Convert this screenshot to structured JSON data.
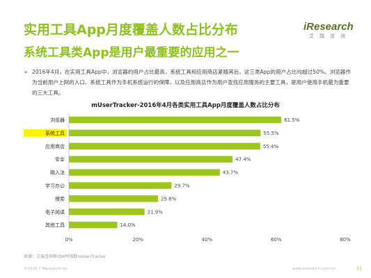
{
  "header": {
    "title": "实用工具App月度覆盖人数占比分布",
    "subtitle": "系统工具类App是用户最重要的应用之一"
  },
  "logo": {
    "text": "iResearch",
    "sub": "艾瑞咨询"
  },
  "bullet": {
    "marker": "➢",
    "text": "2016年4月，在实用工具App中，浏览器的用户占比最高，系统工具和应用商店紧随其后，这三类App的用户占比均超过50%。浏览器作为当前用户上网的入口、系统工具作为手机系统运行的保障，以及应用商店作为用户查找应用服务的主要工具，是用户使用手机最为重要的三大工具。"
  },
  "chart_data": {
    "type": "bar",
    "orientation": "horizontal",
    "title": "mUserTracker-2016年4月各类实用工具App月度覆盖人数占比分布",
    "categories": [
      "浏览器",
      "系统工具",
      "应用商店",
      "安全",
      "输入法",
      "学习办公",
      "搜索",
      "电子阅读",
      "其他工具"
    ],
    "values": [
      61.5,
      55.5,
      55.4,
      47.4,
      43.7,
      29.7,
      25.8,
      21.9,
      14.0
    ],
    "value_labels": [
      "61.5%",
      "55.5%",
      "55.4%",
      "47.4%",
      "43.7%",
      "29.7%",
      "25.8%",
      "21.9%",
      "14.0%"
    ],
    "xlim": [
      0,
      80
    ],
    "x_ticks": [
      "0%",
      "20%",
      "40%",
      "60%",
      "80%"
    ],
    "highlighted_category": "系统工具",
    "bar_color": "#9dc71f",
    "highlight_color": "#fff200",
    "grid": false
  },
  "footer": {
    "source": "来源：艾瑞咨询移动APP指数mUserTracker",
    "copyright": "©2016.7 iResearch Inc",
    "website": "www.iresearch.com.cn",
    "page": "11"
  }
}
